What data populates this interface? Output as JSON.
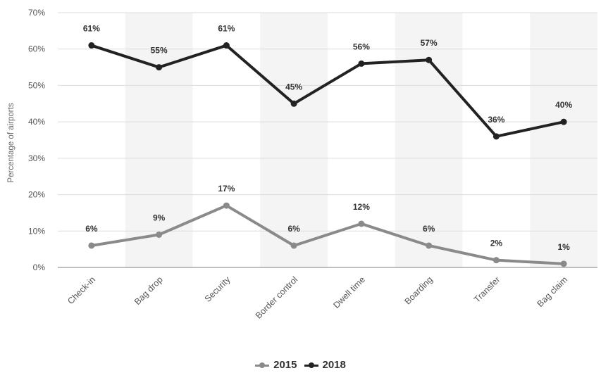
{
  "chart_data": {
    "type": "line",
    "categories": [
      "Check-in",
      "Bag drop",
      "Security",
      "Border control",
      "Dwell time",
      "Boarding",
      "Transfer",
      "Bag claim"
    ],
    "series": [
      {
        "name": "2015",
        "values": [
          6,
          9,
          17,
          6,
          12,
          6,
          2,
          1
        ],
        "labels": [
          "6%",
          "9%",
          "17%",
          "6%",
          "12%",
          "6%",
          "2%",
          "1%"
        ],
        "color": "#8a8a8a"
      },
      {
        "name": "2018",
        "values": [
          61,
          55,
          61,
          45,
          56,
          57,
          36,
          40
        ],
        "labels": [
          "61%",
          "55%",
          "61%",
          "45%",
          "56%",
          "57%",
          "36%",
          "40%"
        ],
        "color": "#222222"
      }
    ],
    "ylabel": "Percentage of airports",
    "xlabel": "",
    "ylim": [
      0,
      70
    ],
    "yticks": [
      "0%",
      "10%",
      "20%",
      "30%",
      "40%",
      "50%",
      "60%",
      "70%"
    ],
    "grid": true,
    "legend_position": "bottom-center"
  }
}
